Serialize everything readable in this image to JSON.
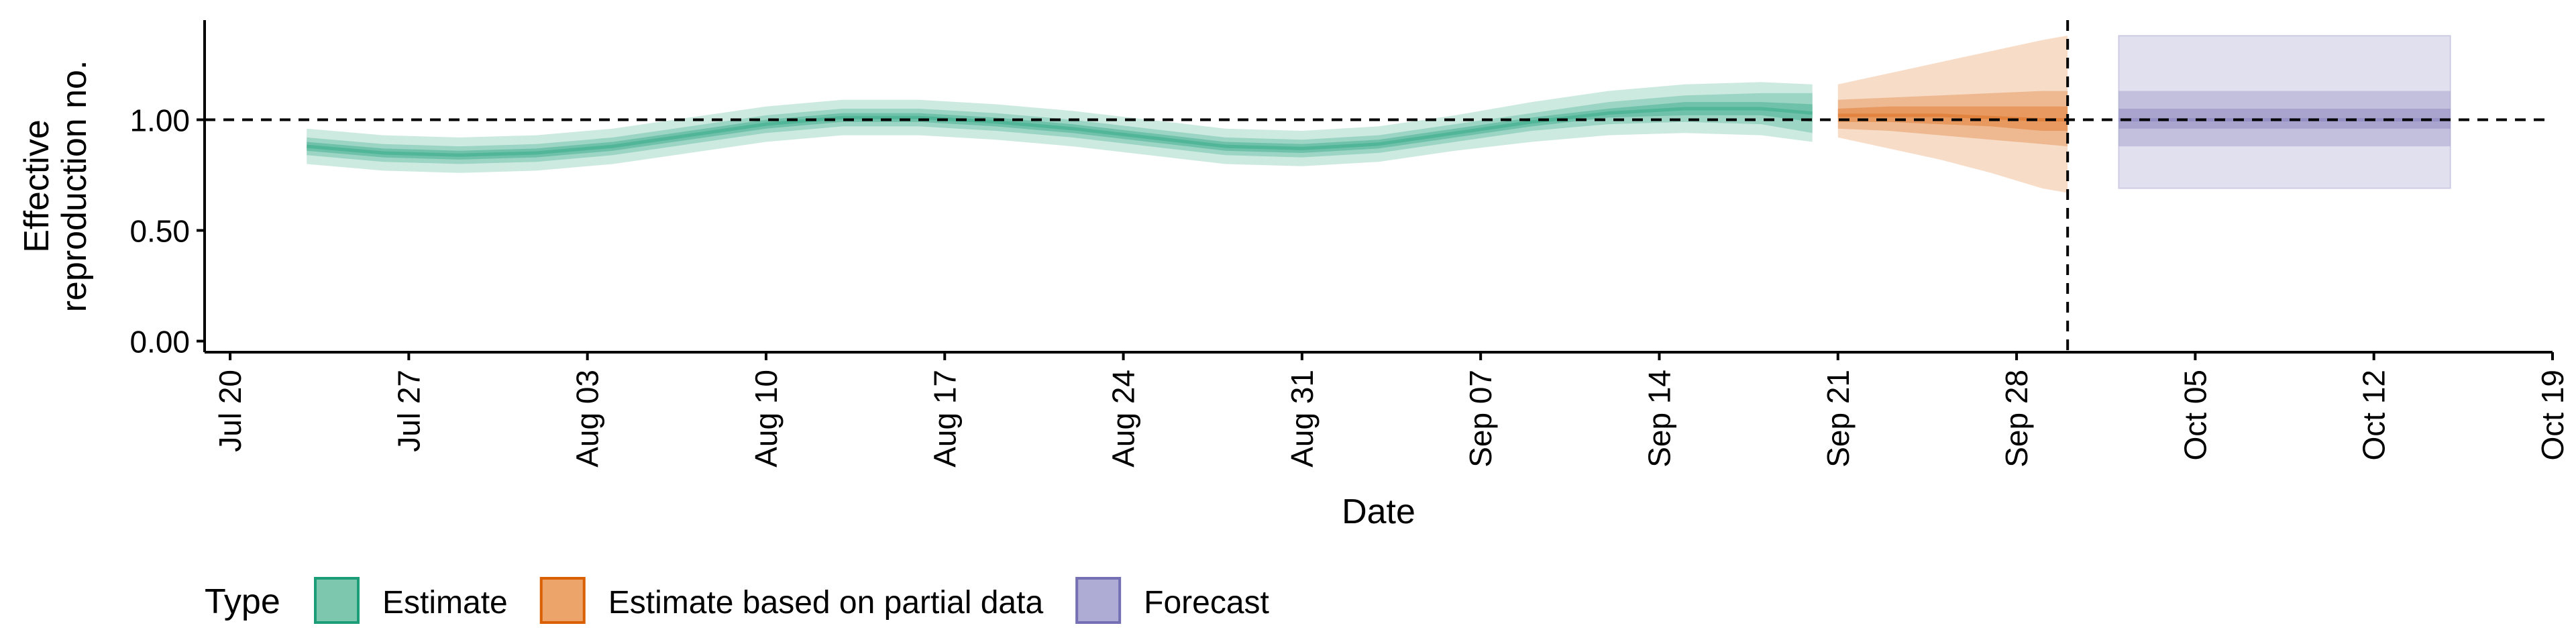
{
  "chart_data": {
    "type": "area",
    "xlabel": "Date",
    "ylabel_lines": [
      "Effective",
      "reproduction no."
    ],
    "ylim": [
      -0.05,
      1.45
    ],
    "yticks": [
      0.0,
      0.5,
      1.0
    ],
    "ytick_labels": [
      "0.00",
      "0.50",
      "1.00"
    ],
    "xlim": [
      "2021-07-19",
      "2021-10-19"
    ],
    "xticks": [
      "2021-07-20",
      "2021-07-27",
      "2021-08-03",
      "2021-08-10",
      "2021-08-17",
      "2021-08-24",
      "2021-08-31",
      "2021-09-07",
      "2021-09-14",
      "2021-09-21",
      "2021-09-28",
      "2021-10-05",
      "2021-10-12",
      "2021-10-19"
    ],
    "xtick_labels": [
      "Jul 20",
      "Jul 27",
      "Aug 03",
      "Aug 10",
      "Aug 17",
      "Aug 24",
      "Aug 31",
      "Sep 07",
      "Sep 14",
      "Sep 21",
      "Sep 28",
      "Oct 05",
      "Oct 12",
      "Oct 19"
    ],
    "reference_line_y": 1.0,
    "vertical_line_x": "2021-09-30",
    "grid": false,
    "legend": {
      "title": "Type",
      "position": "bottom",
      "entries": [
        {
          "label": "Estimate",
          "fill": "#7cc7ad",
          "stroke": "#1b9e77"
        },
        {
          "label": "Estimate based on partial data",
          "fill": "#eda46b",
          "stroke": "#d95f02"
        },
        {
          "label": "Forecast",
          "fill": "#aeabd4",
          "stroke": "#7570b3"
        }
      ]
    },
    "series": [
      {
        "name": "Estimate",
        "color": "#1b9e77",
        "x": [
          "2021-07-23",
          "2021-07-26",
          "2021-07-29",
          "2021-08-01",
          "2021-08-04",
          "2021-08-07",
          "2021-08-10",
          "2021-08-13",
          "2021-08-16",
          "2021-08-19",
          "2021-08-22",
          "2021-08-25",
          "2021-08-28",
          "2021-08-31",
          "2021-09-03",
          "2021-09-06",
          "2021-09-09",
          "2021-09-12",
          "2021-09-15",
          "2021-09-18",
          "2021-09-20"
        ],
        "median": [
          0.88,
          0.85,
          0.84,
          0.85,
          0.88,
          0.93,
          0.98,
          1.01,
          1.01,
          0.99,
          0.96,
          0.92,
          0.88,
          0.87,
          0.89,
          0.94,
          0.99,
          1.03,
          1.05,
          1.05,
          1.03
        ],
        "inner_lower": [
          0.86,
          0.83,
          0.82,
          0.83,
          0.86,
          0.91,
          0.96,
          0.99,
          0.99,
          0.97,
          0.94,
          0.9,
          0.86,
          0.85,
          0.87,
          0.92,
          0.97,
          1.01,
          1.02,
          1.02,
          0.99
        ],
        "inner_upper": [
          0.9,
          0.87,
          0.86,
          0.87,
          0.9,
          0.95,
          1.0,
          1.03,
          1.03,
          1.01,
          0.98,
          0.94,
          0.9,
          0.89,
          0.91,
          0.96,
          1.01,
          1.05,
          1.08,
          1.08,
          1.07
        ],
        "mid_lower": [
          0.84,
          0.81,
          0.8,
          0.81,
          0.84,
          0.89,
          0.94,
          0.97,
          0.97,
          0.95,
          0.92,
          0.88,
          0.84,
          0.83,
          0.85,
          0.9,
          0.95,
          0.98,
          0.99,
          0.98,
          0.94
        ],
        "mid_upper": [
          0.92,
          0.89,
          0.88,
          0.89,
          0.92,
          0.97,
          1.02,
          1.05,
          1.05,
          1.03,
          1.0,
          0.96,
          0.92,
          0.91,
          0.93,
          0.98,
          1.03,
          1.08,
          1.11,
          1.12,
          1.12
        ],
        "outer_lower": [
          0.8,
          0.77,
          0.76,
          0.77,
          0.8,
          0.85,
          0.9,
          0.93,
          0.93,
          0.91,
          0.88,
          0.84,
          0.8,
          0.79,
          0.81,
          0.86,
          0.9,
          0.93,
          0.94,
          0.93,
          0.9
        ],
        "outer_upper": [
          0.96,
          0.93,
          0.92,
          0.93,
          0.96,
          1.01,
          1.06,
          1.09,
          1.09,
          1.07,
          1.04,
          1.0,
          0.96,
          0.95,
          0.97,
          1.02,
          1.08,
          1.13,
          1.16,
          1.17,
          1.16
        ]
      },
      {
        "name": "Estimate based on partial data",
        "color": "#d95f02",
        "x": [
          "2021-09-21",
          "2021-09-23",
          "2021-09-25",
          "2021-09-27",
          "2021-09-29",
          "2021-09-30"
        ],
        "median": [
          1.02,
          1.02,
          1.02,
          1.01,
          1.0,
          1.0
        ],
        "inner_lower": [
          0.99,
          0.99,
          0.98,
          0.97,
          0.95,
          0.95
        ],
        "inner_upper": [
          1.05,
          1.06,
          1.06,
          1.06,
          1.06,
          1.06
        ],
        "mid_lower": [
          0.96,
          0.95,
          0.93,
          0.91,
          0.89,
          0.88
        ],
        "mid_upper": [
          1.09,
          1.1,
          1.11,
          1.12,
          1.13,
          1.13
        ],
        "outer_lower": [
          0.92,
          0.87,
          0.82,
          0.76,
          0.69,
          0.67
        ],
        "outer_upper": [
          1.16,
          1.21,
          1.26,
          1.31,
          1.36,
          1.38
        ]
      },
      {
        "name": "Forecast",
        "color": "#7570b3",
        "x": [
          "2021-10-02",
          "2021-10-15"
        ],
        "median": [
          1.0,
          1.0
        ],
        "inner_lower": [
          0.96,
          0.96
        ],
        "inner_upper": [
          1.05,
          1.05
        ],
        "mid_lower": [
          0.88,
          0.88
        ],
        "mid_upper": [
          1.13,
          1.13
        ],
        "outer_lower": [
          0.69,
          0.69
        ],
        "outer_upper": [
          1.38,
          1.38
        ]
      }
    ]
  }
}
